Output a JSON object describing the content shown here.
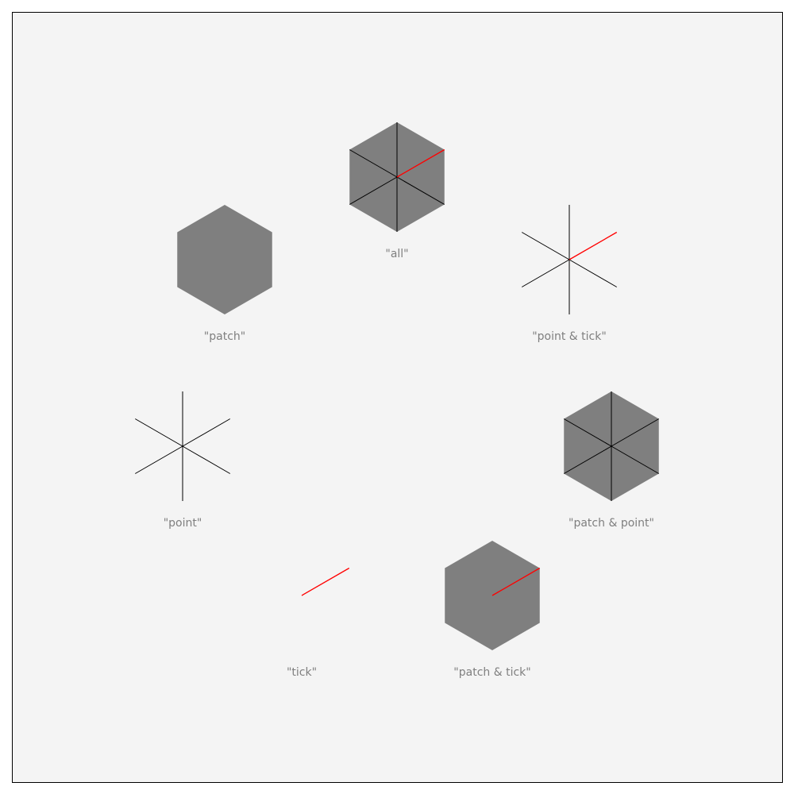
{
  "colors": {
    "panel_background": "#f4f4f4",
    "panel_border": "#000000",
    "patch_fill": "#7f7f7f",
    "point_stroke": "#000000",
    "tick_stroke": "#ff0000",
    "caption_text": "#7f7f7f"
  },
  "variants": [
    {
      "id": "all",
      "caption": "\"all\"",
      "patch": true,
      "point": true,
      "tick": true
    },
    {
      "id": "patch",
      "caption": "\"patch\"",
      "patch": true,
      "point": false,
      "tick": false
    },
    {
      "id": "point-tick",
      "caption": "\"point & tick\"",
      "patch": false,
      "point": true,
      "tick": true
    },
    {
      "id": "point",
      "caption": "\"point\"",
      "patch": false,
      "point": true,
      "tick": false
    },
    {
      "id": "patch-point",
      "caption": "\"patch & point\"",
      "patch": true,
      "point": true,
      "tick": false
    },
    {
      "id": "tick",
      "caption": "\"tick\"",
      "patch": false,
      "point": false,
      "tick": true
    },
    {
      "id": "patch-tick",
      "caption": "\"patch & tick\"",
      "patch": true,
      "point": false,
      "tick": true
    }
  ]
}
